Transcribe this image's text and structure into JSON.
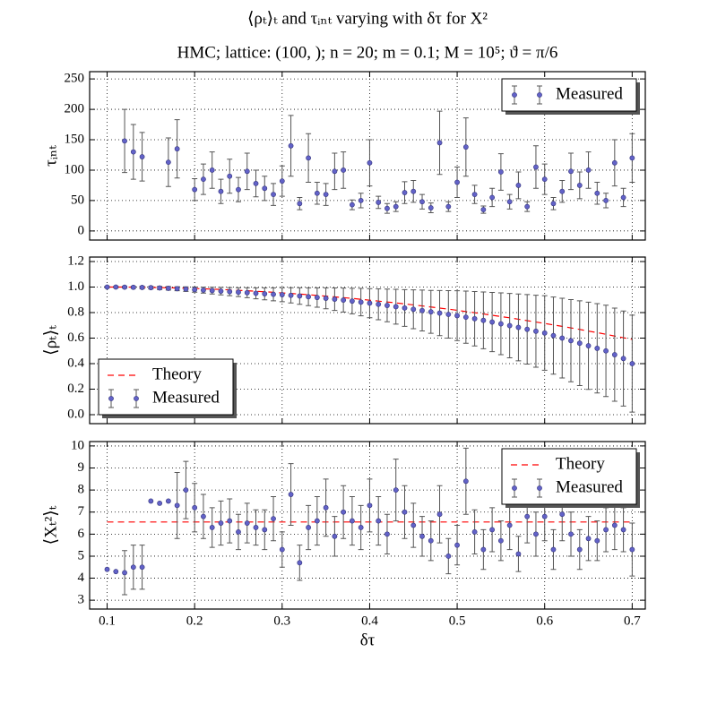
{
  "title": "⟨ρₜ⟩ₜ and τᵢₙₜ varying with δτ for X²",
  "subtitle": "HMC; lattice: (100, ); n = 20; m = 0.1; M = 10⁵; ϑ = π/6",
  "chart_data": [
    {
      "type": "errorbar",
      "ylabel": "τᵢₙₜ",
      "grid": true,
      "legend": "upper right",
      "xlim": [
        0.08,
        0.715
      ],
      "ylim": [
        -15,
        262
      ],
      "xticks": [
        0.1,
        0.2,
        0.3,
        0.4,
        0.5,
        0.6,
        0.7
      ],
      "yticks": [
        0,
        50,
        100,
        150,
        200,
        250
      ],
      "x": [
        0.1,
        0.11,
        0.12,
        0.13,
        0.14,
        0.15,
        0.16,
        0.17,
        0.18,
        0.19,
        0.2,
        0.21,
        0.22,
        0.23,
        0.24,
        0.25,
        0.26,
        0.27,
        0.28,
        0.29,
        0.3,
        0.31,
        0.32,
        0.33,
        0.34,
        0.35,
        0.36,
        0.37,
        0.38,
        0.39,
        0.4,
        0.41,
        0.42,
        0.43,
        0.44,
        0.45,
        0.46,
        0.47,
        0.48,
        0.49,
        0.5,
        0.51,
        0.52,
        0.53,
        0.54,
        0.55,
        0.56,
        0.57,
        0.58,
        0.59,
        0.6,
        0.61,
        0.62,
        0.63,
        0.64,
        0.65,
        0.66,
        0.67,
        0.68,
        0.69,
        0.7
      ],
      "series": [
        {
          "name": "Measured",
          "color": "#6262c8",
          "values": [
            null,
            null,
            148,
            130,
            122,
            null,
            null,
            113,
            135,
            null,
            68,
            85,
            100,
            65,
            90,
            68,
            98,
            78,
            70,
            60,
            82,
            140,
            45,
            120,
            62,
            60,
            98,
            100,
            43,
            50,
            112,
            47,
            37,
            40,
            63,
            65,
            48,
            38,
            145,
            40,
            80,
            138,
            60,
            35,
            55,
            97,
            48,
            75,
            40,
            105,
            85,
            45,
            65,
            98,
            75,
            100,
            62,
            50,
            112,
            55,
            120
          ],
          "errors": [
            null,
            null,
            52,
            45,
            40,
            null,
            null,
            40,
            48,
            null,
            18,
            25,
            30,
            20,
            28,
            20,
            30,
            22,
            20,
            18,
            25,
            50,
            10,
            40,
            18,
            18,
            30,
            30,
            8,
            12,
            38,
            10,
            8,
            8,
            18,
            18,
            12,
            8,
            52,
            8,
            25,
            48,
            15,
            6,
            15,
            30,
            12,
            22,
            8,
            35,
            25,
            10,
            18,
            30,
            22,
            30,
            18,
            12,
            38,
            15,
            40
          ]
        }
      ]
    },
    {
      "type": "errorbar",
      "ylabel": "⟨ρₜ⟩ₜ",
      "grid": true,
      "legend": "lower left",
      "xlim": [
        0.08,
        0.715
      ],
      "ylim": [
        -0.07,
        1.235
      ],
      "xticks": [
        0.1,
        0.2,
        0.3,
        0.4,
        0.5,
        0.6,
        0.7
      ],
      "yticks": [
        {
          "value": 0,
          "label": "0.0"
        },
        0.2,
        0.4,
        0.6,
        0.8,
        {
          "value": 1,
          "label": "1.0"
        },
        1.2
      ],
      "x": [
        0.1,
        0.11,
        0.12,
        0.13,
        0.14,
        0.15,
        0.16,
        0.17,
        0.18,
        0.19,
        0.2,
        0.21,
        0.22,
        0.23,
        0.24,
        0.25,
        0.26,
        0.27,
        0.28,
        0.29,
        0.3,
        0.31,
        0.32,
        0.33,
        0.34,
        0.35,
        0.36,
        0.37,
        0.38,
        0.39,
        0.4,
        0.41,
        0.42,
        0.43,
        0.44,
        0.45,
        0.46,
        0.47,
        0.48,
        0.49,
        0.5,
        0.51,
        0.52,
        0.53,
        0.54,
        0.55,
        0.56,
        0.57,
        0.58,
        0.59,
        0.6,
        0.61,
        0.62,
        0.63,
        0.64,
        0.65,
        0.66,
        0.67,
        0.68,
        0.69,
        0.7
      ],
      "series": [
        {
          "name": "Theory",
          "style": "dashed",
          "color": "#ff0000",
          "values": [
            1,
            1,
            1,
            0.999,
            0.998,
            0.997,
            0.996,
            0.994,
            0.993,
            0.991,
            0.989,
            0.986,
            0.984,
            0.981,
            0.978,
            0.974,
            0.971,
            0.967,
            0.963,
            0.959,
            0.954,
            0.95,
            0.945,
            0.94,
            0.934,
            0.929,
            0.923,
            0.917,
            0.911,
            0.904,
            0.897,
            0.89,
            0.883,
            0.876,
            0.868,
            0.86,
            0.852,
            0.844,
            0.835,
            0.827,
            0.818,
            0.808,
            0.799,
            0.789,
            0.779,
            0.769,
            0.759,
            0.748,
            0.737,
            0.726,
            0.715,
            0.703,
            0.692,
            0.68,
            0.668,
            0.655,
            0.643,
            0.63,
            0.616,
            0.603,
            0.59
          ]
        },
        {
          "name": "Measured",
          "color": "#6262c8",
          "values": [
            1,
            1,
            0.999,
            0.998,
            0.997,
            0.995,
            0.993,
            0.99,
            0.987,
            0.984,
            0.98,
            0.976,
            0.972,
            0.968,
            0.964,
            0.96,
            0.956,
            0.951,
            0.947,
            0.943,
            0.94,
            0.935,
            0.93,
            0.924,
            0.918,
            0.912,
            0.905,
            0.898,
            0.89,
            0.882,
            0.874,
            0.865,
            0.856,
            0.846,
            0.836,
            0.826,
            0.816,
            0.806,
            0.796,
            0.786,
            0.776,
            0.764,
            0.752,
            0.739,
            0.726,
            0.712,
            0.698,
            0.684,
            0.669,
            0.654,
            0.64,
            0.62,
            0.6,
            0.58,
            0.56,
            0.54,
            0.52,
            0.5,
            0.47,
            0.44,
            0.4
          ],
          "errors": [
            0.005,
            0.006,
            0.007,
            0.008,
            0.009,
            0.01,
            0.012,
            0.014,
            0.016,
            0.018,
            0.02,
            0.023,
            0.026,
            0.029,
            0.032,
            0.035,
            0.039,
            0.043,
            0.047,
            0.051,
            0.055,
            0.06,
            0.065,
            0.07,
            0.076,
            0.082,
            0.088,
            0.094,
            0.1,
            0.107,
            0.114,
            0.121,
            0.128,
            0.136,
            0.144,
            0.152,
            0.16,
            0.168,
            0.177,
            0.186,
            0.195,
            0.204,
            0.213,
            0.222,
            0.232,
            0.242,
            0.252,
            0.262,
            0.272,
            0.282,
            0.292,
            0.302,
            0.312,
            0.322,
            0.332,
            0.342,
            0.35,
            0.358,
            0.365,
            0.372,
            0.38
          ]
        }
      ]
    },
    {
      "type": "errorbar",
      "ylabel": "⟨Xₜ²⟩ₜ",
      "xlabel": "δτ",
      "grid": true,
      "legend": "upper right",
      "xlim": [
        0.08,
        0.715
      ],
      "ylim": [
        2.6,
        10.2
      ],
      "xticks": [
        0.1,
        0.2,
        0.3,
        0.4,
        0.5,
        0.6,
        0.7
      ],
      "yticks": [
        3,
        4,
        5,
        6,
        7,
        8,
        9,
        10
      ],
      "x": [
        0.1,
        0.11,
        0.12,
        0.13,
        0.14,
        0.15,
        0.16,
        0.17,
        0.18,
        0.19,
        0.2,
        0.21,
        0.22,
        0.23,
        0.24,
        0.25,
        0.26,
        0.27,
        0.28,
        0.29,
        0.3,
        0.31,
        0.32,
        0.33,
        0.34,
        0.35,
        0.36,
        0.37,
        0.38,
        0.39,
        0.4,
        0.41,
        0.42,
        0.43,
        0.44,
        0.45,
        0.46,
        0.47,
        0.48,
        0.49,
        0.5,
        0.51,
        0.52,
        0.53,
        0.54,
        0.55,
        0.56,
        0.57,
        0.58,
        0.59,
        0.6,
        0.61,
        0.62,
        0.63,
        0.64,
        0.65,
        0.66,
        0.67,
        0.68,
        0.69,
        0.7
      ],
      "series": [
        {
          "name": "Theory",
          "style": "dashed",
          "color": "#ff0000",
          "x": [
            0.1,
            0.7
          ],
          "values": [
            6.55,
            6.55
          ]
        },
        {
          "name": "Measured",
          "color": "#6262c8",
          "values": [
            4.4,
            4.3,
            4.25,
            4.5,
            4.5,
            7.5,
            7.4,
            7.5,
            7.3,
            8.0,
            7.2,
            6.8,
            6.3,
            6.5,
            6.6,
            6.1,
            6.5,
            6.3,
            6.2,
            6.7,
            5.3,
            7.8,
            4.7,
            6.3,
            6.6,
            7.2,
            5.9,
            7.0,
            6.6,
            6.3,
            7.3,
            6.6,
            6.0,
            8.0,
            7.0,
            6.4,
            5.9,
            5.7,
            6.9,
            5.0,
            5.5,
            8.4,
            6.1,
            5.3,
            6.2,
            5.7,
            6.4,
            5.1,
            6.8,
            6.0,
            6.8,
            5.3,
            6.9,
            6.0,
            5.3,
            5.8,
            5.7,
            6.2,
            6.4,
            6.2,
            5.3
          ],
          "errors": [
            null,
            null,
            1,
            1,
            1,
            null,
            null,
            null,
            1.5,
            1.3,
            1.1,
            1,
            0.9,
            1,
            1,
            0.8,
            0.9,
            0.8,
            0.9,
            1,
            0.8,
            1.4,
            0.8,
            1,
            1.1,
            1.3,
            0.9,
            1.2,
            1.1,
            1,
            1.2,
            1.1,
            0.9,
            1.4,
            1.2,
            1,
            0.9,
            0.9,
            1.3,
            0.8,
            0.9,
            1.5,
            1,
            0.9,
            1,
            0.9,
            1.1,
            0.8,
            1.2,
            1,
            1.1,
            0.9,
            1.2,
            1,
            0.9,
            1,
            0.9,
            1,
            1.1,
            1,
            1.2
          ]
        }
      ]
    }
  ]
}
